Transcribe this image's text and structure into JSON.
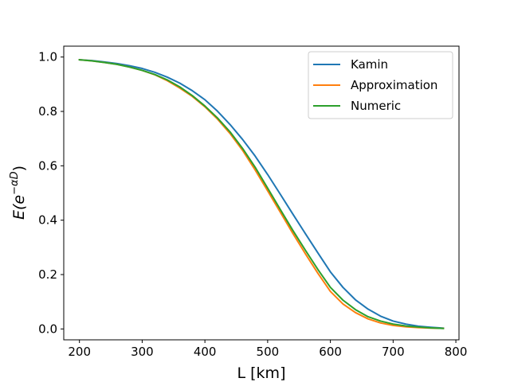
{
  "chart_data": {
    "type": "line",
    "title": "",
    "xlabel": "L [km]",
    "ylabel_prefix": "E(e",
    "ylabel_exponent": "−αD",
    "ylabel_suffix": ")",
    "xlim": [
      175,
      805
    ],
    "ylim": [
      -0.04,
      1.04
    ],
    "xticks": [
      200,
      300,
      400,
      500,
      600,
      700,
      800
    ],
    "yticks": [
      0.0,
      0.2,
      0.4,
      0.6,
      0.8,
      1.0
    ],
    "xtick_labels": [
      "200",
      "300",
      "400",
      "500",
      "600",
      "700",
      "800"
    ],
    "ytick_labels": [
      "0.0",
      "0.2",
      "0.4",
      "0.6",
      "0.8",
      "1.0"
    ],
    "legend_position": "top-right",
    "x": [
      200,
      220,
      240,
      260,
      280,
      300,
      320,
      340,
      360,
      380,
      400,
      420,
      440,
      460,
      480,
      500,
      520,
      540,
      560,
      580,
      600,
      620,
      640,
      660,
      680,
      700,
      720,
      740,
      760,
      780
    ],
    "series": [
      {
        "name": "Kamin",
        "color": "#1f77b4",
        "values": [
          0.99,
          0.987,
          0.982,
          0.976,
          0.968,
          0.958,
          0.944,
          0.926,
          0.904,
          0.876,
          0.843,
          0.801,
          0.752,
          0.697,
          0.636,
          0.568,
          0.496,
          0.423,
          0.351,
          0.28,
          0.21,
          0.153,
          0.107,
          0.073,
          0.047,
          0.029,
          0.018,
          0.01,
          0.006,
          0.003
        ]
      },
      {
        "name": "Approximation",
        "color": "#ff7f0e",
        "values": [
          0.99,
          0.986,
          0.98,
          0.973,
          0.963,
          0.951,
          0.935,
          0.913,
          0.886,
          0.855,
          0.817,
          0.772,
          0.719,
          0.657,
          0.585,
          0.508,
          0.43,
          0.352,
          0.277,
          0.205,
          0.138,
          0.092,
          0.06,
          0.037,
          0.022,
          0.013,
          0.008,
          0.005,
          0.003,
          0.002
        ]
      },
      {
        "name": "Numeric",
        "color": "#2ca02c",
        "values": [
          0.99,
          0.986,
          0.98,
          0.973,
          0.963,
          0.951,
          0.936,
          0.916,
          0.89,
          0.858,
          0.82,
          0.776,
          0.725,
          0.664,
          0.595,
          0.518,
          0.44,
          0.363,
          0.29,
          0.219,
          0.153,
          0.106,
          0.071,
          0.045,
          0.029,
          0.018,
          0.011,
          0.007,
          0.004,
          0.002
        ]
      }
    ]
  }
}
